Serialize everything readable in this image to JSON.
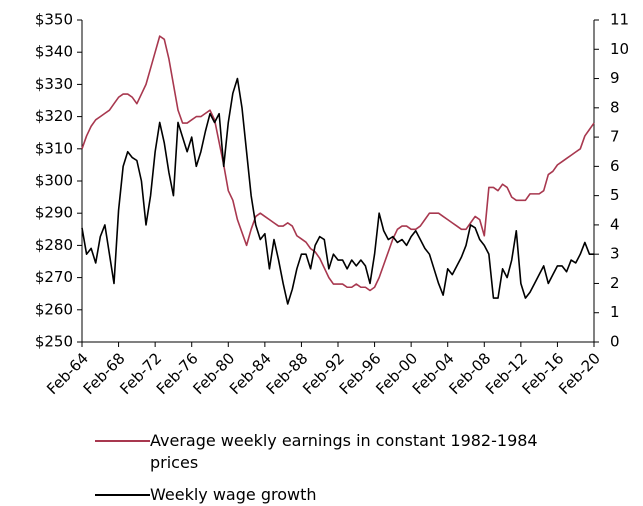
{
  "chart_data": {
    "type": "line",
    "categories": [
      "Feb-64",
      null,
      null,
      null,
      null,
      null,
      null,
      null,
      "Feb-68",
      null,
      null,
      null,
      null,
      null,
      null,
      null,
      "Feb-72",
      null,
      null,
      null,
      null,
      null,
      null,
      null,
      "Feb-76",
      null,
      null,
      null,
      null,
      null,
      null,
      null,
      "Feb-80",
      null,
      null,
      null,
      null,
      null,
      null,
      null,
      "Feb-84",
      null,
      null,
      null,
      null,
      null,
      null,
      null,
      "Feb-88",
      null,
      null,
      null,
      null,
      null,
      null,
      null,
      "Feb-92",
      null,
      null,
      null,
      null,
      null,
      null,
      null,
      "Feb-96",
      null,
      null,
      null,
      null,
      null,
      null,
      null,
      "Feb-00",
      null,
      null,
      null,
      null,
      null,
      null,
      null,
      "Feb-04",
      null,
      null,
      null,
      null,
      null,
      null,
      null,
      "Feb-08",
      null,
      null,
      null,
      null,
      null,
      null,
      null,
      "Feb-12",
      null,
      null,
      null,
      null,
      null,
      null,
      null,
      "Feb-16",
      null,
      null,
      null,
      null,
      null,
      null,
      null,
      "Feb-20"
    ],
    "series": [
      {
        "name": "Average weekly earnings in constant 1982-1984 prices",
        "color": "#a8384f",
        "values": [
          310,
          314,
          317,
          319,
          320,
          321,
          322,
          324,
          326,
          327,
          327,
          326,
          324,
          327,
          330,
          335,
          340,
          345,
          344,
          338,
          330,
          322,
          318,
          318,
          319,
          320,
          320,
          321,
          322,
          319,
          312,
          305,
          297,
          294,
          288,
          284,
          280,
          285,
          289,
          290,
          289,
          288,
          287,
          286,
          286,
          287,
          286,
          283,
          282,
          281,
          279,
          278,
          276,
          273,
          270,
          268,
          268,
          268,
          267,
          267,
          268,
          267,
          267,
          266,
          267,
          270,
          274,
          278,
          282,
          285,
          286,
          286,
          285,
          285,
          286,
          288,
          290,
          290,
          290,
          289,
          288,
          287,
          286,
          285,
          285,
          287,
          289,
          288,
          283,
          298,
          298,
          297,
          299,
          298,
          295,
          294,
          294,
          294,
          296,
          296,
          296,
          297,
          302,
          303,
          305,
          306,
          307,
          308,
          309,
          310,
          314,
          316,
          318
        ]
      },
      {
        "name": "Weekly wage growth",
        "color": "#000000",
        "axis": "y2",
        "values": [
          3.9,
          3.0,
          3.2,
          2.7,
          3.6,
          4.0,
          3.0,
          2.0,
          4.5,
          6.0,
          6.5,
          6.3,
          6.2,
          5.5,
          4.0,
          5.0,
          6.5,
          7.5,
          6.8,
          5.8,
          5.0,
          7.5,
          7.0,
          6.5,
          7.0,
          6.0,
          6.5,
          7.2,
          7.8,
          7.5,
          7.8,
          6.0,
          7.5,
          8.5,
          9.0,
          8.0,
          6.5,
          5.0,
          4.0,
          3.5,
          3.7,
          2.5,
          3.5,
          2.8,
          2.0,
          1.3,
          1.8,
          2.5,
          3.0,
          3.0,
          2.5,
          3.3,
          3.6,
          3.5,
          2.5,
          3.0,
          2.8,
          2.8,
          2.5,
          2.8,
          2.6,
          2.8,
          2.6,
          2.0,
          3.0,
          4.4,
          3.8,
          3.5,
          3.6,
          3.4,
          3.5,
          3.3,
          3.6,
          3.8,
          3.5,
          3.2,
          3.0,
          2.5,
          2.0,
          1.6,
          2.5,
          2.3,
          2.6,
          2.9,
          3.3,
          4.0,
          3.9,
          3.5,
          3.3,
          3.0,
          1.5,
          1.5,
          2.5,
          2.2,
          2.8,
          3.8,
          2.0,
          1.5,
          1.7,
          2.0,
          2.3,
          2.6,
          2.0,
          2.3,
          2.6,
          2.6,
          2.4,
          2.8,
          2.7,
          3.0,
          3.4,
          3.0,
          3.0
        ]
      }
    ],
    "ylim": [
      250,
      350
    ],
    "yticks": [
      {
        "value": 250,
        "label": "$250"
      },
      {
        "value": 260,
        "label": "$260"
      },
      {
        "value": 270,
        "label": "$270"
      },
      {
        "value": 280,
        "label": "$280"
      },
      {
        "value": 290,
        "label": "$290"
      },
      {
        "value": 300,
        "label": "$300"
      },
      {
        "value": 310,
        "label": "$310"
      },
      {
        "value": 320,
        "label": "$320"
      },
      {
        "value": 330,
        "label": "$330"
      },
      {
        "value": 340,
        "label": "$340"
      },
      {
        "value": 350,
        "label": "$350"
      }
    ],
    "y2lim": [
      0,
      11
    ],
    "y2ticks": [
      0,
      1,
      2,
      3,
      4,
      5,
      6,
      7,
      8,
      9,
      10,
      11
    ]
  }
}
